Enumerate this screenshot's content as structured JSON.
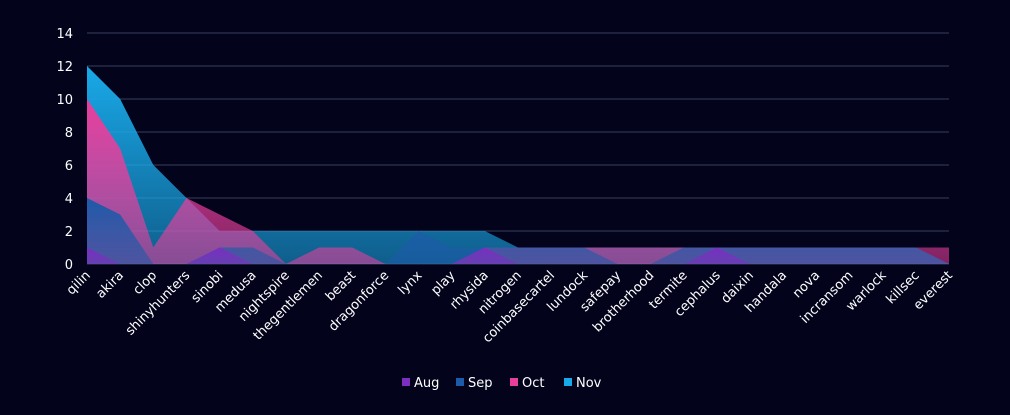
{
  "chart_data": {
    "type": "area",
    "stacked": false,
    "categories": [
      "qilin",
      "akira",
      "clop",
      "shinyhunters",
      "sinobi",
      "medusa",
      "nightspire",
      "thegentlemen",
      "beast",
      "dragonforce",
      "lynx",
      "play",
      "rhysida",
      "nitrogen",
      "coinbasecartel",
      "lundock",
      "safepay",
      "brotherhood",
      "termite",
      "cephalus",
      "daixin",
      "handala",
      "nova",
      "incransom",
      "warlock",
      "killsec",
      "everest"
    ],
    "series": [
      {
        "name": "Aug",
        "color": "#7a2fc0",
        "values": [
          1,
          0,
          0,
          0,
          1,
          0,
          0,
          0,
          0,
          0,
          0,
          0,
          1,
          0,
          0,
          0,
          0,
          0,
          0,
          1,
          0,
          0,
          0,
          0,
          0,
          0,
          0
        ]
      },
      {
        "name": "Sep",
        "color": "#1d5aa8",
        "values": [
          4,
          3,
          0,
          0,
          1,
          1,
          0,
          0,
          0,
          0,
          2,
          1,
          1,
          1,
          1,
          1,
          0,
          0,
          1,
          1,
          1,
          1,
          1,
          1,
          1,
          1,
          0
        ]
      },
      {
        "name": "Oct",
        "color": "#e83e9c",
        "values": [
          10,
          7,
          1,
          4,
          3,
          2,
          0,
          1,
          1,
          0,
          0,
          0,
          1,
          1,
          1,
          1,
          1,
          1,
          1,
          1,
          1,
          1,
          1,
          1,
          1,
          1,
          1
        ]
      },
      {
        "name": "Nov",
        "color": "#19a9e8",
        "values": [
          12,
          10,
          6,
          4,
          2,
          2,
          2,
          2,
          2,
          2,
          2,
          2,
          2,
          1,
          1,
          1,
          1,
          1,
          1,
          1,
          1,
          1,
          1,
          1,
          1,
          1,
          0
        ]
      }
    ],
    "ylim": [
      0,
      14
    ],
    "yticks": [
      0,
      2,
      4,
      6,
      8,
      10,
      12,
      14
    ],
    "grid": true,
    "legend": "bottom",
    "title": "",
    "xlabel": "",
    "ylabel": ""
  }
}
